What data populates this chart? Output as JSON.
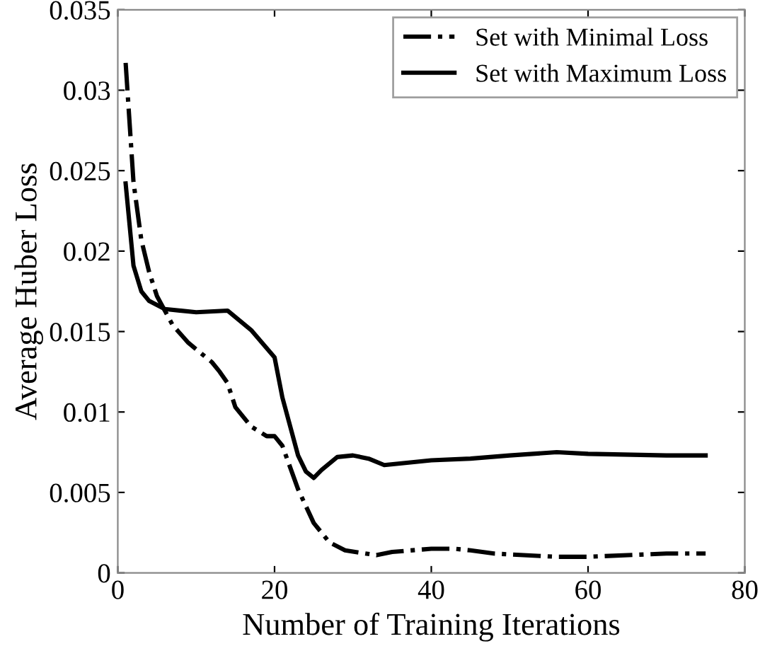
{
  "chart_data": {
    "type": "line",
    "xlabel": "Number of Training Iterations",
    "ylabel": "Average Huber Loss",
    "xlim": [
      0,
      80
    ],
    "ylim": [
      0,
      0.035
    ],
    "xticks": [
      0,
      20,
      40,
      60,
      80
    ],
    "yticks": [
      0,
      0.005,
      0.01,
      0.015,
      0.02,
      0.025,
      0.03,
      0.035
    ],
    "grid": false,
    "legend": "top right",
    "marker": "none",
    "series": [
      {
        "name": "Set with Minimal Loss",
        "color": "#000000",
        "line_style": "dashdot",
        "x": [
          1,
          2,
          3,
          4,
          5,
          7,
          9,
          12,
          13,
          14,
          15,
          17,
          19,
          20,
          21,
          23,
          25,
          27,
          29,
          33,
          35,
          40,
          43,
          45,
          48,
          56,
          60,
          70,
          75
        ],
        "values": [
          0.0317,
          0.0243,
          0.0207,
          0.0187,
          0.0172,
          0.0154,
          0.0143,
          0.0131,
          0.0125,
          0.0118,
          0.0103,
          0.0091,
          0.0085,
          0.0085,
          0.0079,
          0.0052,
          0.0031,
          0.0019,
          0.0014,
          0.0011,
          0.0013,
          0.0015,
          0.0015,
          0.0014,
          0.0012,
          0.001,
          0.001,
          0.0012,
          0.0012
        ]
      },
      {
        "name": "Set with Maximum Loss",
        "color": "#000000",
        "line_style": "solid",
        "x": [
          1,
          2,
          3,
          4,
          6,
          10,
          14,
          17,
          20,
          21,
          23,
          24,
          25,
          26,
          28,
          30,
          32,
          34,
          40,
          45,
          50,
          56,
          60,
          70,
          75
        ],
        "values": [
          0.0242,
          0.0191,
          0.0175,
          0.0169,
          0.0164,
          0.0162,
          0.0163,
          0.0151,
          0.0134,
          0.0109,
          0.0073,
          0.0063,
          0.0059,
          0.0064,
          0.0072,
          0.0073,
          0.0071,
          0.0067,
          0.007,
          0.0071,
          0.0073,
          0.0075,
          0.0074,
          0.0073,
          0.0073
        ]
      }
    ]
  }
}
